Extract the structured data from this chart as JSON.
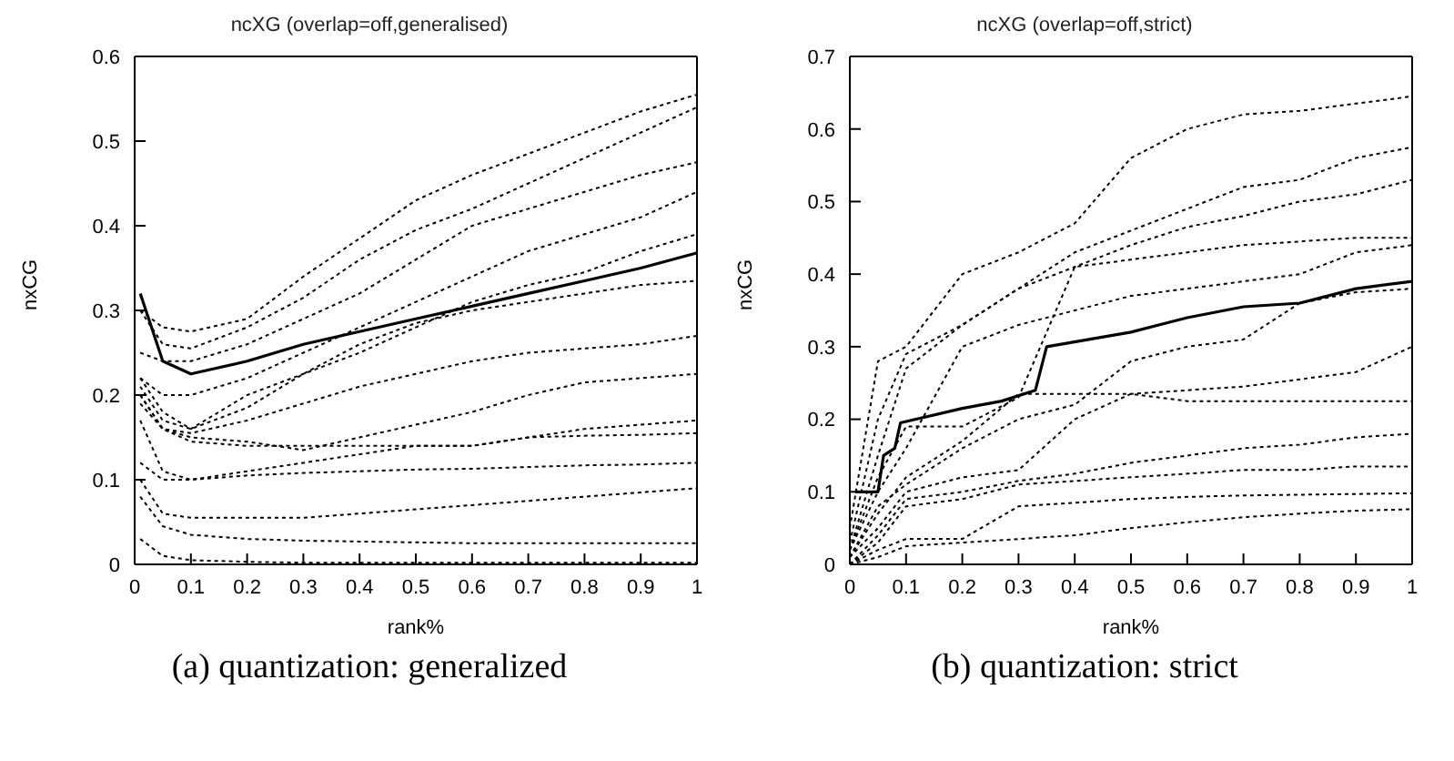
{
  "chart_data": [
    {
      "type": "line",
      "title": "ncXG (overlap=off,generalised)",
      "xlabel": "rank%",
      "ylabel": "nxCG",
      "annotations": [
        "(a) quantization: generalized"
      ],
      "xlim": [
        0,
        1
      ],
      "ylim": [
        0,
        0.6
      ],
      "xticks": [
        0,
        0.1,
        0.2,
        0.3,
        0.4,
        0.5,
        0.6,
        0.7,
        0.8,
        0.9,
        1
      ],
      "yticks": [
        0,
        0.1,
        0.2,
        0.3,
        0.4,
        0.5,
        0.6
      ],
      "x": [
        0.01,
        0.05,
        0.1,
        0.2,
        0.3,
        0.4,
        0.5,
        0.6,
        0.7,
        0.8,
        0.9,
        1
      ],
      "series": [
        {
          "color": "#000000",
          "line_style": "solid",
          "values": [
            0.32,
            0.24,
            0.225,
            0.24,
            0.26,
            0.275,
            0.29,
            0.305,
            0.32,
            0.335,
            0.35,
            0.368
          ]
        },
        {
          "color": "#000000",
          "line_style": "dotted",
          "values": [
            0.3,
            0.28,
            0.275,
            0.29,
            0.34,
            0.385,
            0.43,
            0.46,
            0.485,
            0.51,
            0.535,
            0.555
          ]
        },
        {
          "color": "#000000",
          "line_style": "dotted",
          "values": [
            0.3,
            0.26,
            0.255,
            0.28,
            0.315,
            0.36,
            0.395,
            0.42,
            0.45,
            0.48,
            0.51,
            0.54
          ]
        },
        {
          "color": "#000000",
          "line_style": "dotted",
          "values": [
            0.25,
            0.24,
            0.24,
            0.26,
            0.29,
            0.32,
            0.36,
            0.4,
            0.42,
            0.44,
            0.46,
            0.475
          ]
        },
        {
          "color": "#000000",
          "line_style": "dotted",
          "values": [
            0.22,
            0.2,
            0.2,
            0.22,
            0.25,
            0.28,
            0.31,
            0.34,
            0.37,
            0.39,
            0.41,
            0.44
          ]
        },
        {
          "color": "#000000",
          "line_style": "dotted",
          "values": [
            0.22,
            0.18,
            0.16,
            0.2,
            0.225,
            0.25,
            0.28,
            0.31,
            0.33,
            0.345,
            0.37,
            0.39
          ]
        },
        {
          "color": "#000000",
          "line_style": "dotted",
          "values": [
            0.21,
            0.17,
            0.16,
            0.185,
            0.225,
            0.26,
            0.285,
            0.3,
            0.31,
            0.32,
            0.33,
            0.335
          ]
        },
        {
          "color": "#000000",
          "line_style": "dotted",
          "values": [
            0.2,
            0.16,
            0.155,
            0.17,
            0.19,
            0.21,
            0.225,
            0.24,
            0.25,
            0.255,
            0.26,
            0.27
          ]
        },
        {
          "color": "#000000",
          "line_style": "dotted",
          "values": [
            0.19,
            0.16,
            0.145,
            0.14,
            0.14,
            0.14,
            0.14,
            0.14,
            0.15,
            0.152,
            0.153,
            0.155
          ]
        },
        {
          "color": "#000000",
          "line_style": "dotted",
          "values": [
            0.2,
            0.16,
            0.15,
            0.145,
            0.135,
            0.15,
            0.165,
            0.18,
            0.2,
            0.215,
            0.22,
            0.225
          ]
        },
        {
          "color": "#000000",
          "line_style": "dotted",
          "values": [
            0.17,
            0.11,
            0.1,
            0.11,
            0.12,
            0.13,
            0.14,
            0.14,
            0.15,
            0.16,
            0.165,
            0.17
          ]
        },
        {
          "color": "#000000",
          "line_style": "dotted",
          "values": [
            0.12,
            0.1,
            0.1,
            0.105,
            0.108,
            0.11,
            0.112,
            0.113,
            0.115,
            0.117,
            0.118,
            0.12
          ]
        },
        {
          "color": "#000000",
          "line_style": "dotted",
          "values": [
            0.1,
            0.06,
            0.055,
            0.055,
            0.055,
            0.06,
            0.065,
            0.07,
            0.075,
            0.08,
            0.085,
            0.09
          ]
        },
        {
          "color": "#000000",
          "line_style": "dotted",
          "values": [
            0.08,
            0.045,
            0.035,
            0.03,
            0.028,
            0.027,
            0.026,
            0.025,
            0.025,
            0.025,
            0.025,
            0.025
          ]
        },
        {
          "color": "#000000",
          "line_style": "dotted",
          "values": [
            0.03,
            0.01,
            0.005,
            0.003,
            0.002,
            0.002,
            0.002,
            0.002,
            0.002,
            0.002,
            0.002,
            0.002
          ]
        }
      ]
    },
    {
      "type": "line",
      "title": "ncXG (overlap=off,strict)",
      "xlabel": "rank%",
      "ylabel": "nxCG",
      "annotations": [
        "(b) quantization: strict"
      ],
      "xlim": [
        0,
        1
      ],
      "ylim": [
        0,
        0.7
      ],
      "xticks": [
        0,
        0.1,
        0.2,
        0.3,
        0.4,
        0.5,
        0.6,
        0.7,
        0.8,
        0.9,
        1
      ],
      "yticks": [
        0,
        0.1,
        0.2,
        0.3,
        0.4,
        0.5,
        0.6,
        0.7
      ],
      "x": [
        0,
        0.05,
        0.1,
        0.2,
        0.3,
        0.4,
        0.5,
        0.6,
        0.7,
        0.8,
        0.9,
        1
      ],
      "series": [
        {
          "color": "#000000",
          "line_style": "solid",
          "x": [
            0.01,
            0.05,
            0.06,
            0.08,
            0.09,
            0.2,
            0.27,
            0.33,
            0.35,
            0.5,
            0.6,
            0.7,
            0.8,
            0.9,
            1
          ],
          "values": [
            0.1,
            0.1,
            0.15,
            0.16,
            0.195,
            0.215,
            0.225,
            0.24,
            0.3,
            0.32,
            0.34,
            0.355,
            0.36,
            0.38,
            0.39
          ]
        },
        {
          "color": "#000000",
          "line_style": "dotted",
          "values": [
            0.05,
            0.28,
            0.3,
            0.4,
            0.43,
            0.47,
            0.56,
            0.6,
            0.62,
            0.625,
            0.635,
            0.645
          ]
        },
        {
          "color": "#000000",
          "line_style": "dotted",
          "values": [
            0.03,
            0.2,
            0.29,
            0.33,
            0.38,
            0.43,
            0.46,
            0.49,
            0.52,
            0.53,
            0.56,
            0.575
          ]
        },
        {
          "color": "#000000",
          "line_style": "dotted",
          "values": [
            0.02,
            0.15,
            0.27,
            0.33,
            0.38,
            0.41,
            0.44,
            0.465,
            0.48,
            0.5,
            0.51,
            0.53
          ]
        },
        {
          "color": "#000000",
          "line_style": "dotted",
          "values": [
            0.02,
            0.12,
            0.19,
            0.19,
            0.23,
            0.41,
            0.42,
            0.43,
            0.44,
            0.445,
            0.45,
            0.45
          ]
        },
        {
          "color": "#000000",
          "line_style": "dotted",
          "values": [
            0.02,
            0.1,
            0.16,
            0.3,
            0.33,
            0.35,
            0.37,
            0.38,
            0.39,
            0.4,
            0.43,
            0.44
          ]
        },
        {
          "color": "#000000",
          "line_style": "dotted",
          "values": [
            0.01,
            0.08,
            0.11,
            0.16,
            0.2,
            0.22,
            0.28,
            0.3,
            0.31,
            0.36,
            0.375,
            0.38
          ]
        },
        {
          "color": "#000000",
          "line_style": "dotted",
          "values": [
            0.01,
            0.07,
            0.12,
            0.17,
            0.235,
            0.235,
            0.235,
            0.24,
            0.245,
            0.255,
            0.265,
            0.3
          ]
        },
        {
          "color": "#000000",
          "line_style": "dotted",
          "values": [
            0.01,
            0.05,
            0.1,
            0.12,
            0.13,
            0.2,
            0.235,
            0.225,
            0.225,
            0.225,
            0.225,
            0.225
          ]
        },
        {
          "color": "#000000",
          "line_style": "dotted",
          "values": [
            0,
            0.04,
            0.09,
            0.1,
            0.115,
            0.125,
            0.14,
            0.15,
            0.16,
            0.165,
            0.175,
            0.18
          ]
        },
        {
          "color": "#000000",
          "line_style": "dotted",
          "values": [
            0,
            0.03,
            0.08,
            0.09,
            0.11,
            0.115,
            0.12,
            0.125,
            0.13,
            0.13,
            0.135,
            0.135
          ]
        },
        {
          "color": "#000000",
          "line_style": "dotted",
          "values": [
            0,
            0.02,
            0.035,
            0.035,
            0.08,
            0.085,
            0.09,
            0.093,
            0.095,
            0.096,
            0.097,
            0.098
          ]
        },
        {
          "color": "#000000",
          "line_style": "dotted",
          "values": [
            0,
            0.01,
            0.025,
            0.03,
            0.035,
            0.04,
            0.05,
            0.058,
            0.065,
            0.07,
            0.074,
            0.076
          ]
        }
      ]
    }
  ]
}
